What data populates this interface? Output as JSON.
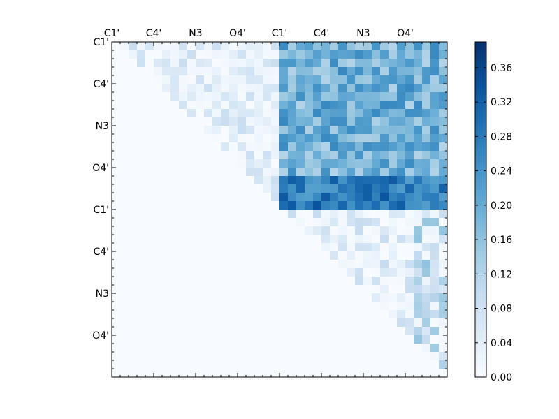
{
  "chart_data": {
    "type": "heatmap",
    "title": "",
    "xlabel": "",
    "ylabel": "",
    "n": 40,
    "top_tick_labels": [
      "C1'",
      "C4'",
      "N3",
      "O4'",
      "C1'",
      "C4'",
      "N3",
      "O4'"
    ],
    "left_tick_labels": [
      "C1'",
      "C4'",
      "N3",
      "O4'",
      "C1'",
      "C4'",
      "N3",
      "O4'"
    ],
    "label_step": 5,
    "colorbar": {
      "min": 0.0,
      "max": 0.39,
      "ticks": [
        "0.00",
        "0.04",
        "0.08",
        "0.12",
        "0.16",
        "0.20",
        "0.24",
        "0.28",
        "0.32",
        "0.36"
      ],
      "colormap": "Blues"
    },
    "colormap_stops": [
      "#f7fbff",
      "#deebf7",
      "#c6dbef",
      "#9ecae1",
      "#6baed6",
      "#4292c6",
      "#2171b5",
      "#08519c",
      "#08306b"
    ],
    "blocks": [
      {
        "name": "base1-base1",
        "rows": [
          0,
          19
        ],
        "cols": [
          0,
          19
        ],
        "upper_only": true,
        "base": 0.04,
        "var": 0.05
      },
      {
        "name": "base1-base2",
        "rows": [
          0,
          15
        ],
        "cols": [
          20,
          39
        ],
        "upper_only": false,
        "base": 0.19,
        "var": 0.07
      },
      {
        "name": "base1-base2-strong",
        "rows": [
          16,
          19
        ],
        "cols": [
          20,
          39
        ],
        "upper_only": false,
        "base": 0.28,
        "var": 0.06
      },
      {
        "name": "base2-base2",
        "rows": [
          20,
          39
        ],
        "cols": [
          20,
          39
        ],
        "upper_only": true,
        "base": 0.04,
        "var": 0.06
      },
      {
        "name": "base2-rightcols",
        "rows": [
          20,
          39
        ],
        "cols": [
          36,
          39
        ],
        "upper_only": true,
        "base": 0.11,
        "var": 0.05
      }
    ]
  }
}
